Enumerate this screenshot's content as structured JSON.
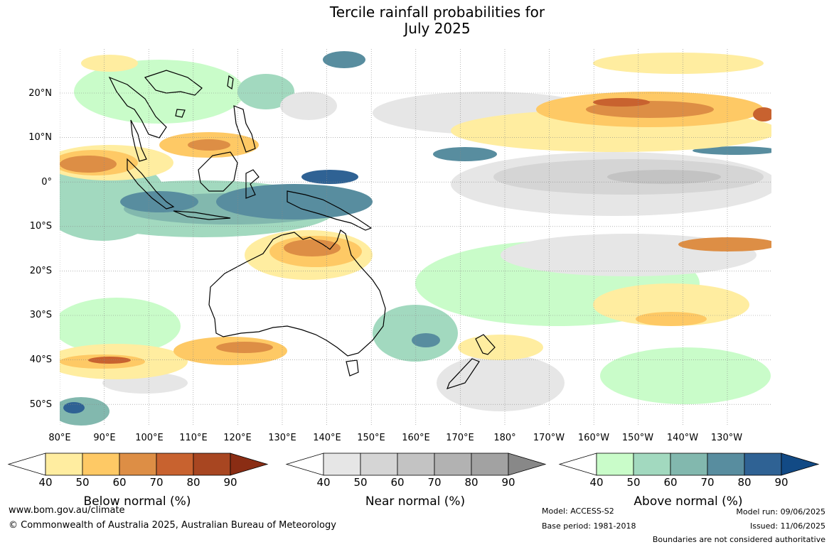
{
  "title": {
    "line1": "Tercile rainfall probabilities for",
    "line2": "July 2025"
  },
  "map": {
    "lat_labels": [
      "20°N",
      "10°N",
      "0°",
      "10°S",
      "20°S",
      "30°S",
      "40°S",
      "50°S"
    ],
    "lon_labels": [
      "80°E",
      "90°E",
      "100°E",
      "110°E",
      "120°E",
      "130°E",
      "140°E",
      "150°E",
      "160°E",
      "170°E",
      "180°",
      "170°W",
      "160°W",
      "150°W",
      "140°W",
      "130°W"
    ]
  },
  "legends": [
    {
      "title": "Below normal (%)",
      "ticks": [
        "40",
        "50",
        "60",
        "70",
        "80",
        "90"
      ],
      "colors": [
        "#ffeda0",
        "#fec965",
        "#dd8e45",
        "#c8622f",
        "#a84621",
        "#8a2d14"
      ]
    },
    {
      "title": "Near normal (%)",
      "ticks": [
        "40",
        "50",
        "60",
        "70",
        "80",
        "90"
      ],
      "colors": [
        "#e6e6e6",
        "#d5d5d5",
        "#c3c3c3",
        "#b2b2b2",
        "#a2a2a2",
        "#888888"
      ]
    },
    {
      "title": "Above normal (%)",
      "ticks": [
        "40",
        "50",
        "60",
        "70",
        "80",
        "90"
      ],
      "colors": [
        "#c9fcc9",
        "#a2d9bf",
        "#82b8ae",
        "#588d9f",
        "#2f6294",
        "#124a85"
      ]
    }
  ],
  "footer": {
    "url": "www.bom.gov.au/climate",
    "copyright": "© Commonwealth of Australia 2025, Australian Bureau of Meteorology",
    "model": "Model: ACCESS-S2",
    "base_period": "Base period: 1981-2018",
    "model_run": "Model run: 09/06/2025",
    "issued": "Issued: 11/06/2025",
    "disclaimer": "Boundaries are not considered authoritative"
  }
}
